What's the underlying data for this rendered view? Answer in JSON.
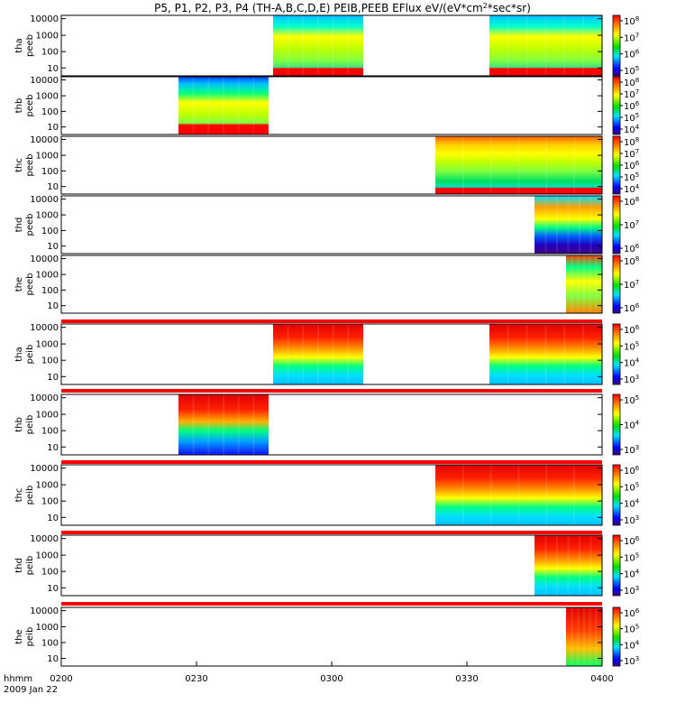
{
  "chart_data": {
    "type": "heatmap",
    "title": "P5, P1, P2, P3, P4 (TH-A,B,C,D,E) PEIB,PEEB EFlux eV/(eV*cm",
    "title_sup": "2",
    "title_end": "*sec*sr)",
    "x_label_line1": "hhmm",
    "x_label_line2": "2009 Jan 22",
    "x_ticks": [
      "0200",
      "0230",
      "0300",
      "0330",
      "0400"
    ],
    "x_range": [
      "0200",
      "0400"
    ],
    "y_ticks": [
      "10000",
      "1000",
      "100",
      "10"
    ],
    "y_scale": "log",
    "colorbar_scale": "log",
    "colors": {
      "red": "#ff0000",
      "yellow": "#ffff00",
      "green": "#00e000",
      "cyan": "#00e0ff",
      "blue": "#0000ff",
      "purple": "#400080"
    },
    "panels": [
      {
        "probe": "tha",
        "instrument": "peeb",
        "ylabel1": "tha",
        "ylabel2": "peeb",
        "data_intervals": [
          [
            "0247",
            "0307"
          ],
          [
            "0335",
            "0400"
          ]
        ],
        "cbar_ticks": [
          {
            "base": "10",
            "exp": "8"
          },
          {
            "base": "10",
            "exp": "7"
          },
          {
            "base": "10",
            "exp": "6"
          },
          {
            "base": "10",
            "exp": "5"
          }
        ]
      },
      {
        "probe": "thb",
        "instrument": "peeb",
        "ylabel1": "thb",
        "ylabel2": "peeb",
        "data_intervals": [
          [
            "0226",
            "0246"
          ]
        ],
        "cbar_ticks": [
          {
            "base": "10",
            "exp": "8"
          },
          {
            "base": "10",
            "exp": "7"
          },
          {
            "base": "10",
            "exp": "6"
          },
          {
            "base": "10",
            "exp": "5"
          },
          {
            "base": "10",
            "exp": "4"
          }
        ]
      },
      {
        "probe": "thc",
        "instrument": "peeb",
        "ylabel1": "thc",
        "ylabel2": "peeb",
        "data_intervals": [
          [
            "0323",
            "0400"
          ]
        ],
        "cbar_ticks": [
          {
            "base": "10",
            "exp": "8"
          },
          {
            "base": "10",
            "exp": "7"
          },
          {
            "base": "10",
            "exp": "6"
          },
          {
            "base": "10",
            "exp": "5"
          },
          {
            "base": "10",
            "exp": "4"
          }
        ]
      },
      {
        "probe": "thd",
        "instrument": "peeb",
        "ylabel1": "thd",
        "ylabel2": "peeb",
        "data_intervals": [
          [
            "0345",
            "0400"
          ]
        ],
        "cbar_ticks": [
          {
            "base": "10",
            "exp": "8"
          },
          {
            "base": "10",
            "exp": "7"
          },
          {
            "base": "10",
            "exp": "6"
          }
        ]
      },
      {
        "probe": "the",
        "instrument": "peeb",
        "ylabel1": "the",
        "ylabel2": "peeb",
        "data_intervals": [
          [
            "0352",
            "0400"
          ]
        ],
        "cbar_ticks": [
          {
            "base": "10",
            "exp": "8"
          },
          {
            "base": "10",
            "exp": "7"
          },
          {
            "base": "10",
            "exp": "6"
          }
        ]
      },
      {
        "probe": "tha",
        "instrument": "peib",
        "ylabel1": "tha",
        "ylabel2": "peib",
        "data_intervals": [
          [
            "0247",
            "0307"
          ],
          [
            "0335",
            "0400"
          ]
        ],
        "cbar_ticks": [
          {
            "base": "10",
            "exp": "6"
          },
          {
            "base": "10",
            "exp": "5"
          },
          {
            "base": "10",
            "exp": "4"
          },
          {
            "base": "10",
            "exp": "3"
          }
        ]
      },
      {
        "probe": "thb",
        "instrument": "peib",
        "ylabel1": "thb",
        "ylabel2": "peib",
        "data_intervals": [
          [
            "0226",
            "0246"
          ]
        ],
        "cbar_ticks": [
          {
            "base": "10",
            "exp": "5"
          },
          {
            "base": "10",
            "exp": "4"
          },
          {
            "base": "10",
            "exp": "3"
          }
        ]
      },
      {
        "probe": "thc",
        "instrument": "peib",
        "ylabel1": "thc",
        "ylabel2": "peib",
        "data_intervals": [
          [
            "0323",
            "0400"
          ]
        ],
        "cbar_ticks": [
          {
            "base": "10",
            "exp": "6"
          },
          {
            "base": "10",
            "exp": "5"
          },
          {
            "base": "10",
            "exp": "4"
          },
          {
            "base": "10",
            "exp": "3"
          }
        ]
      },
      {
        "probe": "thd",
        "instrument": "peib",
        "ylabel1": "thd",
        "ylabel2": "peib",
        "data_intervals": [
          [
            "0345",
            "0400"
          ]
        ],
        "cbar_ticks": [
          {
            "base": "10",
            "exp": "6"
          },
          {
            "base": "10",
            "exp": "5"
          },
          {
            "base": "10",
            "exp": "4"
          },
          {
            "base": "10",
            "exp": "3"
          }
        ]
      },
      {
        "probe": "the",
        "instrument": "peib",
        "ylabel1": "the",
        "ylabel2": "peib",
        "data_intervals": [
          [
            "0352",
            "0400"
          ]
        ],
        "cbar_ticks": [
          {
            "base": "10",
            "exp": "6"
          },
          {
            "base": "10",
            "exp": "5"
          },
          {
            "base": "10",
            "exp": "4"
          },
          {
            "base": "10",
            "exp": "3"
          }
        ]
      }
    ]
  }
}
